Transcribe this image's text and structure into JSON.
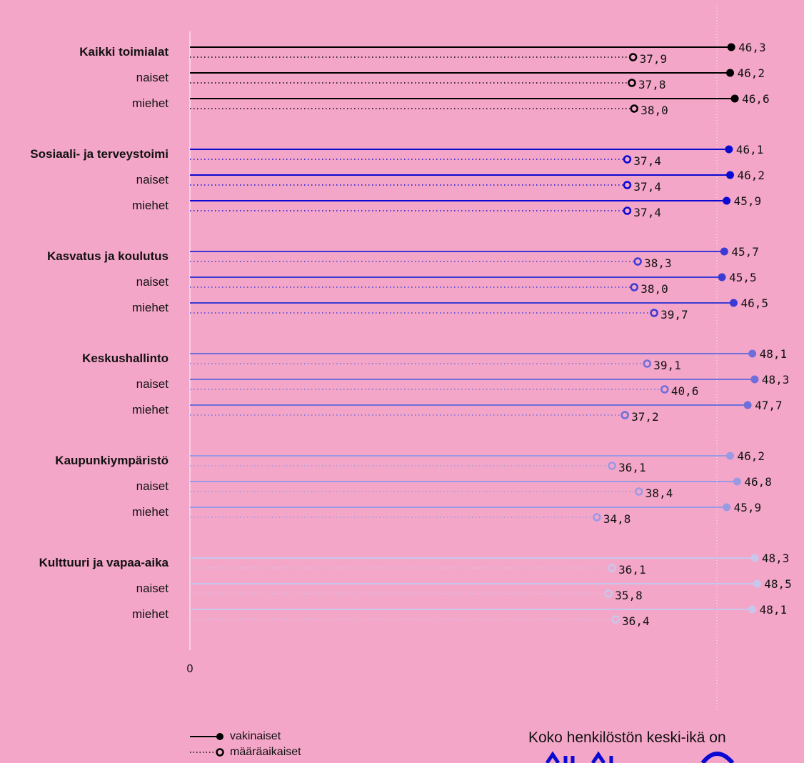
{
  "chart_data": {
    "type": "dot-range",
    "x_origin_label": "0",
    "legend": [
      {
        "label": "vakinaiset",
        "style": "solid-line-filled-dot"
      },
      {
        "label": "määräaikaiset",
        "style": "dotted-line-open-dot"
      }
    ],
    "groups": [
      {
        "name": "Kaikki toimialat",
        "color": "#000000",
        "rows": [
          {
            "label": "Kaikki toimialat",
            "bold": true,
            "vakinaiset": 46.3,
            "vakinaiset_text": "46,3",
            "maaraaikaiset": 37.9,
            "maaraaikaiset_text": "37,9"
          },
          {
            "label": "naiset",
            "bold": false,
            "vakinaiset": 46.2,
            "vakinaiset_text": "46,2",
            "maaraaikaiset": 37.8,
            "maaraaikaiset_text": "37,8"
          },
          {
            "label": "miehet",
            "bold": false,
            "vakinaiset": 46.6,
            "vakinaiset_text": "46,6",
            "maaraaikaiset": 38.0,
            "maaraaikaiset_text": "38,0"
          }
        ]
      },
      {
        "name": "Sosiaali- ja terveystoimi",
        "color": "#0a0ad2",
        "rows": [
          {
            "label": "Sosiaali- ja terveystoimi",
            "bold": true,
            "vakinaiset": 46.1,
            "vakinaiset_text": "46,1",
            "maaraaikaiset": 37.4,
            "maaraaikaiset_text": "37,4"
          },
          {
            "label": "naiset",
            "bold": false,
            "vakinaiset": 46.2,
            "vakinaiset_text": "46,2",
            "maaraaikaiset": 37.4,
            "maaraaikaiset_text": "37,4"
          },
          {
            "label": "miehet",
            "bold": false,
            "vakinaiset": 45.9,
            "vakinaiset_text": "45,9",
            "maaraaikaiset": 37.4,
            "maaraaikaiset_text": "37,4"
          }
        ]
      },
      {
        "name": "Kasvatus ja koulutus",
        "color": "#3b3bd4",
        "rows": [
          {
            "label": "Kasvatus ja koulutus",
            "bold": true,
            "vakinaiset": 45.7,
            "vakinaiset_text": "45,7",
            "maaraaikaiset": 38.3,
            "maaraaikaiset_text": "38,3"
          },
          {
            "label": "naiset",
            "bold": false,
            "vakinaiset": 45.5,
            "vakinaiset_text": "45,5",
            "maaraaikaiset": 38.0,
            "maaraaikaiset_text": "38,0"
          },
          {
            "label": "miehet",
            "bold": false,
            "vakinaiset": 46.5,
            "vakinaiset_text": "46,5",
            "maaraaikaiset": 39.7,
            "maaraaikaiset_text": "39,7"
          }
        ]
      },
      {
        "name": "Keskushallinto",
        "color": "#6f6fdc",
        "rows": [
          {
            "label": "Keskushallinto",
            "bold": true,
            "vakinaiset": 48.1,
            "vakinaiset_text": "48,1",
            "maaraaikaiset": 39.1,
            "maaraaikaiset_text": "39,1"
          },
          {
            "label": "naiset",
            "bold": false,
            "vakinaiset": 48.3,
            "vakinaiset_text": "48,3",
            "maaraaikaiset": 40.6,
            "maaraaikaiset_text": "40,6"
          },
          {
            "label": "miehet",
            "bold": false,
            "vakinaiset": 47.7,
            "vakinaiset_text": "47,7",
            "maaraaikaiset": 37.2,
            "maaraaikaiset_text": "37,2"
          }
        ]
      },
      {
        "name": "Kaupunkiympäristö",
        "color": "#9a9ae4",
        "rows": [
          {
            "label": "Kaupunkiympäristö",
            "bold": true,
            "vakinaiset": 46.2,
            "vakinaiset_text": "46,2",
            "maaraaikaiset": 36.1,
            "maaraaikaiset_text": "36,1"
          },
          {
            "label": "naiset",
            "bold": false,
            "vakinaiset": 46.8,
            "vakinaiset_text": "46,8",
            "maaraaikaiset": 38.4,
            "maaraaikaiset_text": "38,4"
          },
          {
            "label": "miehet",
            "bold": false,
            "vakinaiset": 45.9,
            "vakinaiset_text": "45,9",
            "maaraaikaiset": 34.8,
            "maaraaikaiset_text": "34,8"
          }
        ]
      },
      {
        "name": "Kulttuuri ja vapaa-aika",
        "color": "#c7c7ee",
        "rows": [
          {
            "label": "Kulttuuri ja vapaa-aika",
            "bold": true,
            "vakinaiset": 48.3,
            "vakinaiset_text": "48,3",
            "maaraaikaiset": 36.1,
            "maaraaikaiset_text": "36,1"
          },
          {
            "label": "naiset",
            "bold": false,
            "vakinaiset": 48.5,
            "vakinaiset_text": "48,5",
            "maaraaikaiset": 35.8,
            "maaraaikaiset_text": "35,8"
          },
          {
            "label": "miehet",
            "bold": false,
            "vakinaiset": 48.1,
            "vakinaiset_text": "48,1",
            "maaraaikaiset": 36.4,
            "maaraaikaiset_text": "36,4"
          }
        ]
      }
    ]
  },
  "footer": {
    "text": "Koko henkilöstön keski-ikä on",
    "accent_color": "#0a0ad2"
  },
  "colors": {
    "background": "#f4a6c8",
    "axis": "#ffffff",
    "text": "#111111"
  }
}
